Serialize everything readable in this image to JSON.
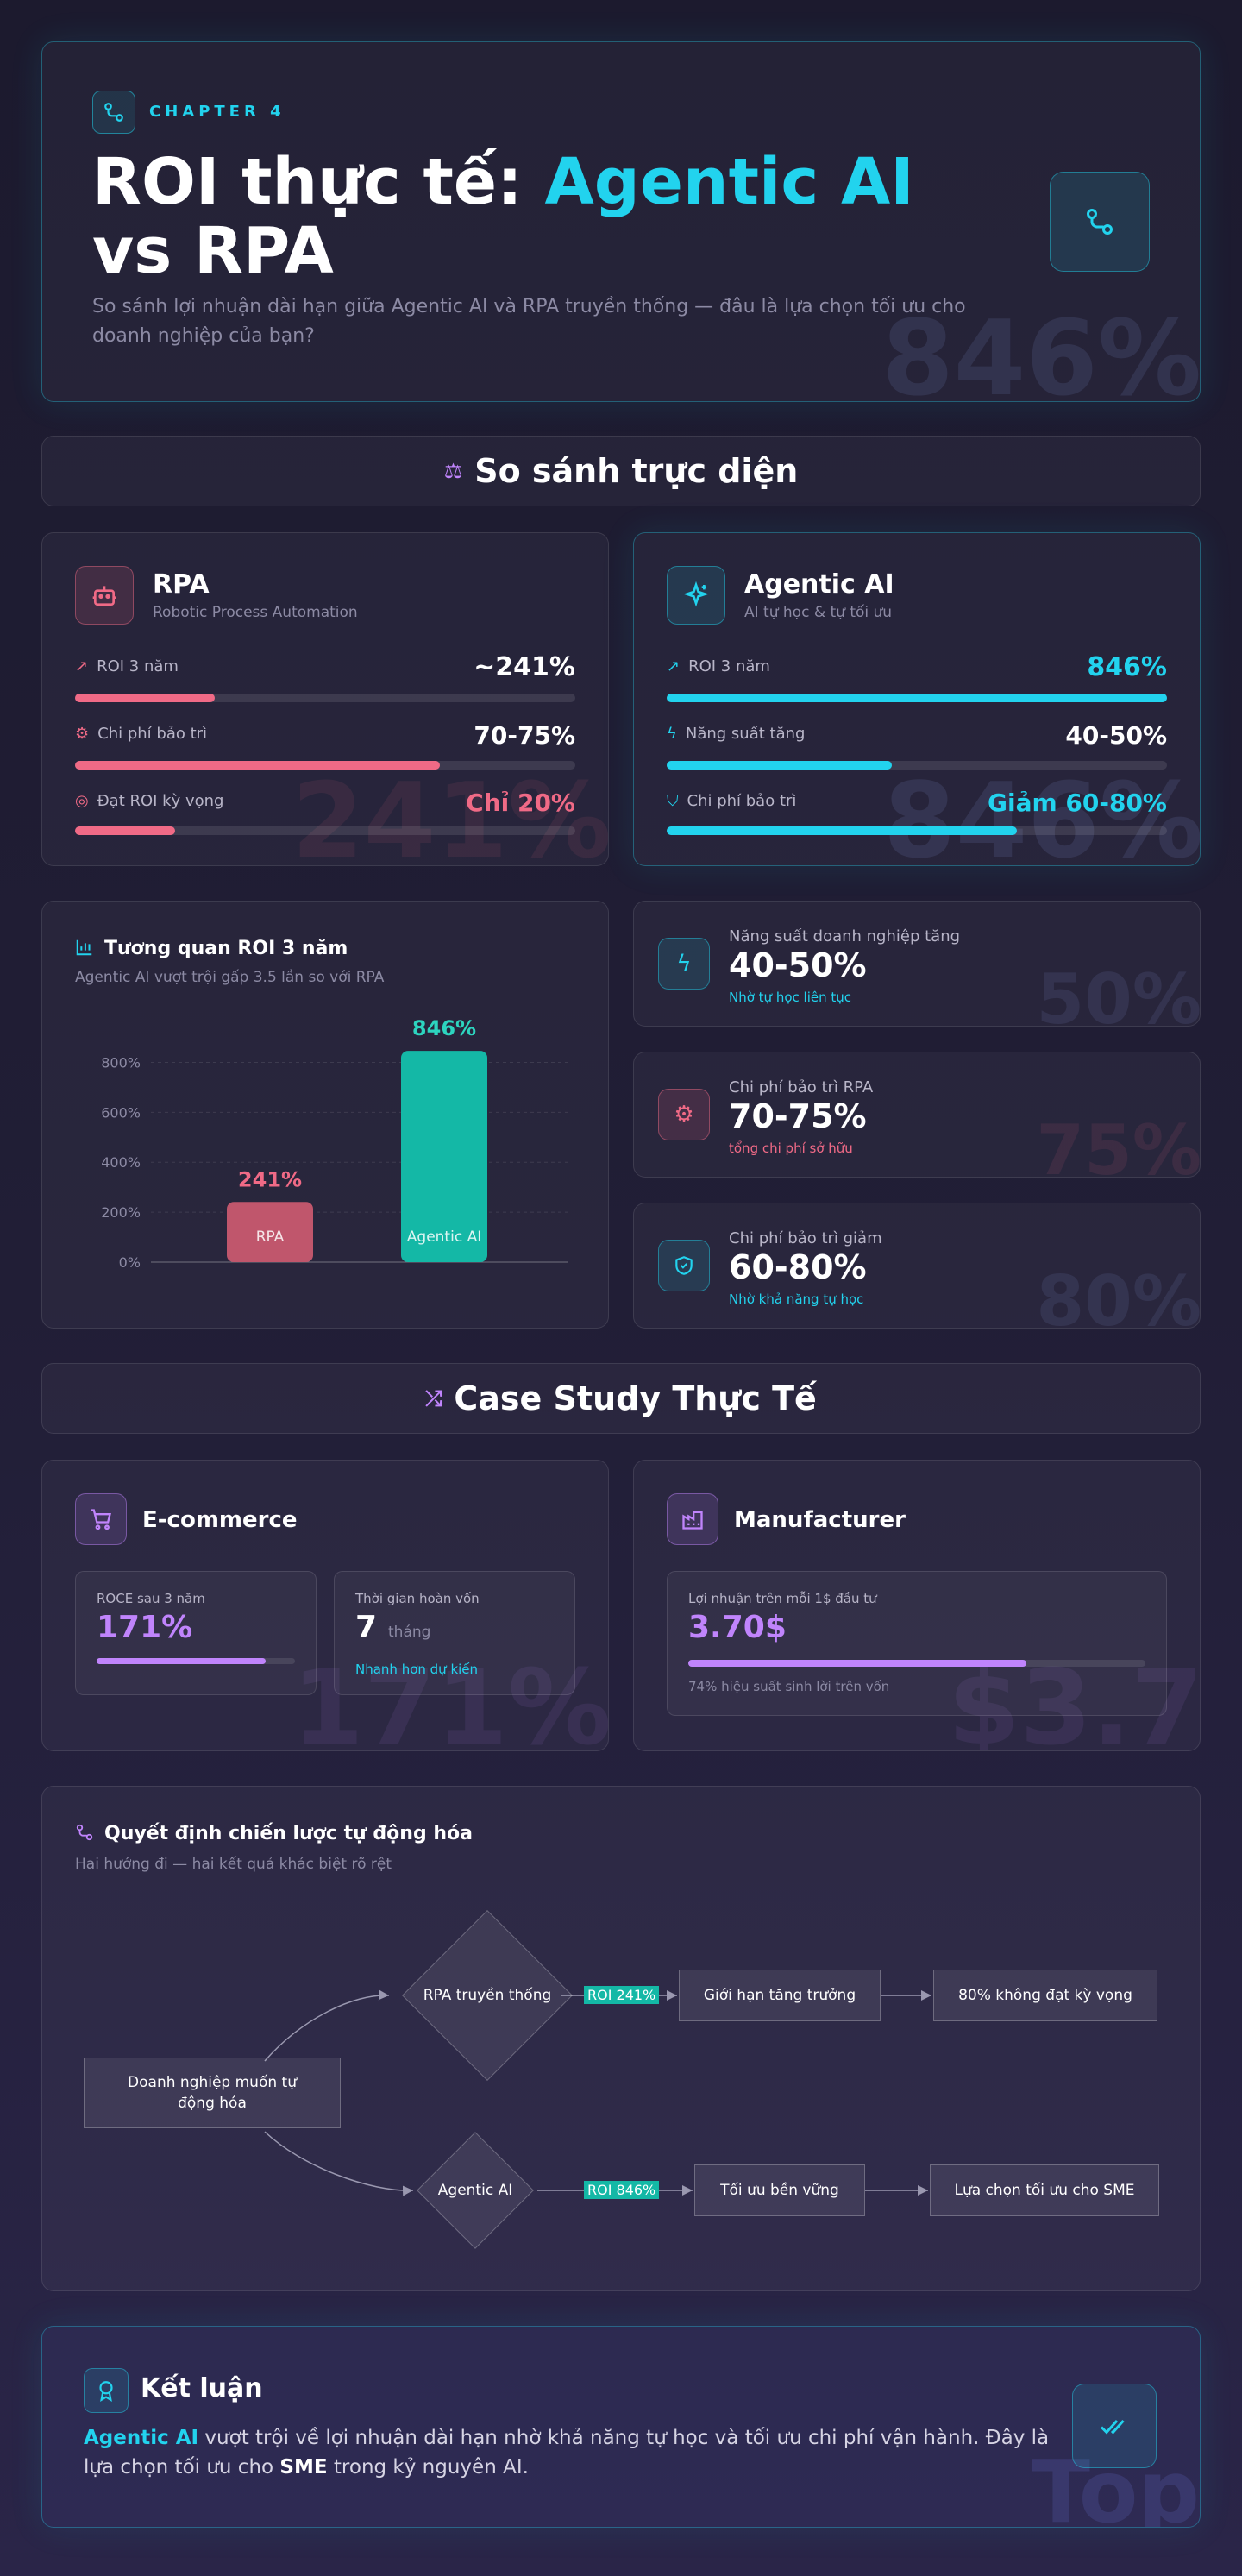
{
  "colors": {
    "accent_cyan": "#22d3ee",
    "accent_pink": "#f06a86",
    "accent_purple": "#c084fc",
    "accent_teal": "#14b8a6",
    "bg": "#1c1a2e"
  },
  "header": {
    "chapter": "CHAPTER 4",
    "title_part1": "ROI thực tế: ",
    "title_highlight": "Agentic AI",
    "title_part2": "vs RPA",
    "subtitle": "So sánh lợi nhuận dài hạn giữa Agentic AI và RPA truyền thống — đâu là lựa chọn tối ưu cho doanh nghiệp của bạn?",
    "watermark": "846%",
    "icon": "git-compare-icon"
  },
  "compare_section": {
    "title": "So sánh trực diện",
    "icon": "scale-icon"
  },
  "rpa_card": {
    "name": "RPA",
    "desc": "Robotic Process Automation",
    "icon": "robot-icon",
    "watermark": "241%",
    "metrics": [
      {
        "label": "ROI 3 năm",
        "value": "~241%",
        "fill": 0.28,
        "icon": "trending-up-icon"
      },
      {
        "label": "Chi phí bảo trì",
        "value": "70-75%",
        "fill": 0.73,
        "icon": "gear-icon"
      },
      {
        "label": "Đạt ROI kỳ vọng",
        "value": "Chỉ 20%",
        "fill": 0.2,
        "icon": "target-icon"
      }
    ]
  },
  "agentic_card": {
    "name": "Agentic AI",
    "desc": "AI tự học & tự tối ưu",
    "icon": "sparkles-icon",
    "watermark": "846%",
    "metrics": [
      {
        "label": "ROI 3 năm",
        "value": "846%",
        "fill": 1.0,
        "icon": "trending-up-icon"
      },
      {
        "label": "Năng suất tăng",
        "value": "40-50%",
        "fill": 0.45,
        "icon": "bolt-icon"
      },
      {
        "label": "Chi phí bảo trì",
        "value": "Giảm 60-80%",
        "fill": 0.7,
        "icon": "shield-check-icon"
      }
    ]
  },
  "roi_chart_card": {
    "title": "Tương quan ROI 3 năm",
    "subtitle": "Agentic AI vượt trội gấp 3.5 lần so với RPA",
    "icon": "bar-chart-icon"
  },
  "chart_data": {
    "type": "bar",
    "categories": [
      "RPA",
      "Agentic AI"
    ],
    "values": [
      241,
      846
    ],
    "value_labels": [
      "241%",
      "846%"
    ],
    "colors": [
      "#c0566c",
      "#14b8a6"
    ],
    "label_colors": [
      "#f06a86",
      "#2dd4bf"
    ],
    "yticks": [
      "0%",
      "200%",
      "400%",
      "600%",
      "800%"
    ],
    "ylim": [
      0,
      850
    ],
    "grid": true
  },
  "stats": [
    {
      "label": "Năng suất doanh nghiệp tăng",
      "value": "40-50%",
      "note": "Nhờ tự học liên tục",
      "watermark": "50%",
      "icon": "bolt-icon",
      "color": "#22d3ee"
    },
    {
      "label": "Chi phí bảo trì RPA",
      "value": "70-75%",
      "note": "tổng chi phí sở hữu",
      "watermark": "75%",
      "icon": "gear-icon",
      "color": "#f06a86"
    },
    {
      "label": "Chi phí bảo trì giảm",
      "value": "60-80%",
      "note": "Nhờ khả năng tự học",
      "watermark": "80%",
      "icon": "shield-check-icon",
      "color": "#22d3ee"
    }
  ],
  "case_section": {
    "title": "Case Study Thực Tế",
    "icon": "shuffle-icon"
  },
  "ecommerce": {
    "title": "E-commerce",
    "icon": "cart-icon",
    "watermark": "171%",
    "roce_label": "ROCE sau 3 năm",
    "roce_value": "171%",
    "roce_fill": 0.85,
    "payback_label": "Thời gian hoàn vốn",
    "payback_value": "7",
    "payback_unit": "tháng",
    "payback_note": "Nhanh hơn dự kiến"
  },
  "manufacturer": {
    "title": "Manufacturer",
    "icon": "factory-icon",
    "watermark": "$3.7",
    "profit_label": "Lợi nhuận trên mỗi 1$ đầu tư",
    "profit_value": "3.70$",
    "profit_fill": 0.74,
    "profit_note": "74% hiệu suất sinh lời trên vốn"
  },
  "flow_card": {
    "title": "Quyết định chiến lược tự động hóa",
    "subtitle": "Hai hướng đi — hai kết quả khác biệt rõ rệt",
    "icon": "flow-icon",
    "start_node": "Doanh nghiệp muốn tự động hóa",
    "rpa_node": "RPA truyền thống",
    "rpa_edge": "ROI 241%",
    "rpa_step": "Giới hạn tăng trưởng",
    "rpa_end": "80% không đạt kỳ vọng",
    "ai_node": "Agentic AI",
    "ai_edge": "ROI 846%",
    "ai_step": "Tối ưu bền vững",
    "ai_end": "Lựa chọn tối ưu cho SME"
  },
  "conclusion": {
    "title": "Kết luận",
    "icon": "award-icon",
    "check_icon": "double-check-icon",
    "highlight": "Agentic AI",
    "text_1": " vượt trội về lợi nhuận dài hạn nhờ khả năng tự học và tối ưu chi phí vận hành. Đây là lựa chọn tối ưu cho ",
    "bold": "SME",
    "text_2": " trong kỷ nguyên AI.",
    "watermark": "Top"
  }
}
